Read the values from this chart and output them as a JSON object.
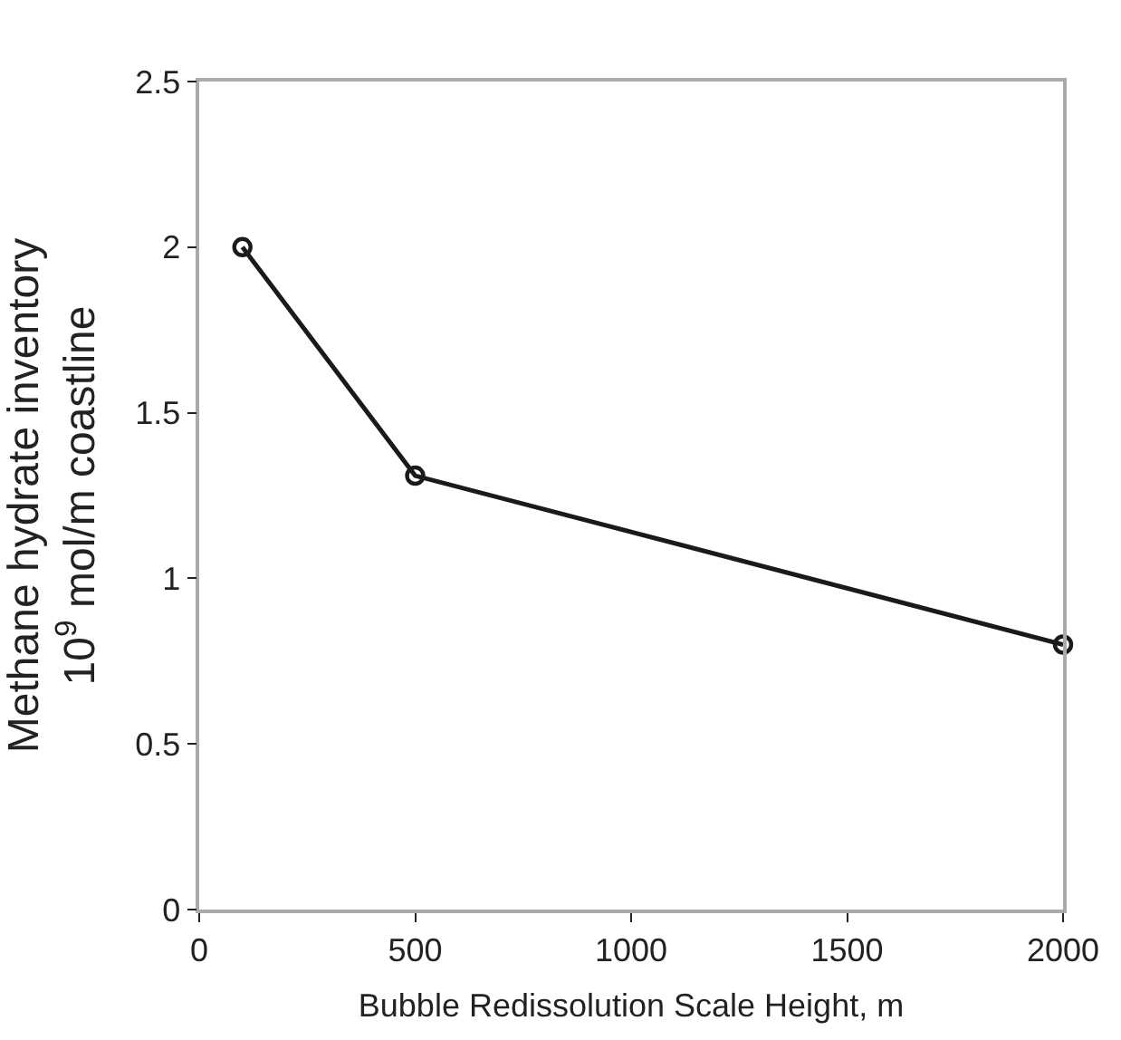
{
  "chart_data": {
    "type": "line",
    "xlabel": "Bubble Redissolution Scale Height, m",
    "ylabel": "Methane hydrate inventory\n10$^{9}$ mol/m coastline",
    "x": [
      100,
      500,
      2000
    ],
    "series": [
      {
        "color": "#1a1a1a",
        "values": [
          2.0,
          1.31,
          0.8
        ]
      }
    ],
    "xlim": [
      0,
      2000
    ],
    "xticks": [
      0,
      500,
      1000,
      1500,
      2000
    ],
    "ylim": [
      0,
      2.5
    ],
    "yticks": [
      0,
      0.5,
      1,
      1.5,
      2,
      2.5
    ],
    "marker": "circle",
    "line_style": "solid"
  }
}
